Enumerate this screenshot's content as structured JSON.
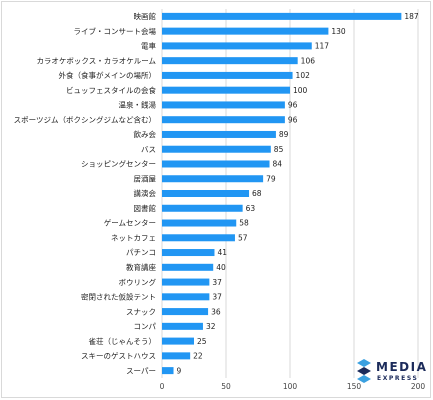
{
  "chart_data": {
    "type": "bar",
    "orientation": "horizontal",
    "categories": [
      "映画館",
      "ライブ・コンサート会場",
      "電車",
      "カラオケボックス・カラオケルーム",
      "外食（食事がメインの場所）",
      "ビュッフェスタイルの会食",
      "温泉・銭湯",
      "スポーツジム（ボクシングジムなど含む）",
      "飲み会",
      "バス",
      "ショッピングセンター",
      "居酒屋",
      "講演会",
      "図書館",
      "ゲームセンター",
      "ネットカフェ",
      "パチンコ",
      "教育講座",
      "ボウリング",
      "密閉された仮設テント",
      "スナック",
      "コンパ",
      "雀荘（じゃんそう）",
      "スキーのゲストハウス",
      "スーパー"
    ],
    "values": [
      187,
      130,
      117,
      106,
      102,
      100,
      96,
      96,
      89,
      85,
      84,
      79,
      68,
      63,
      58,
      57,
      41,
      40,
      37,
      37,
      36,
      32,
      25,
      22,
      9
    ],
    "x_ticks": [
      "0",
      "50",
      "100",
      "150",
      "200"
    ],
    "xlim": [
      0,
      200
    ],
    "grid": "vertical",
    "legend": "none",
    "bar_color": "#2196f3"
  },
  "logo": {
    "line1": "MEDIA",
    "line2": "EXPRESS",
    "color": "#1b2a5a",
    "accent": "#3aa0e0"
  }
}
